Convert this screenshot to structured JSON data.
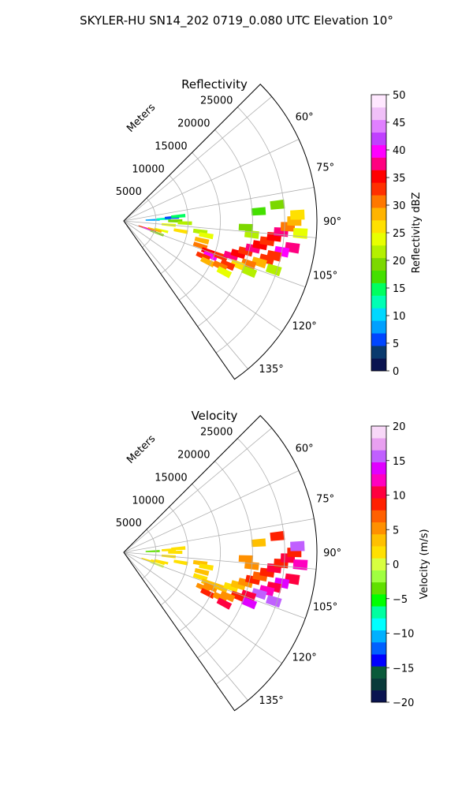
{
  "figure": {
    "title": "SKYLER-HU  SN14_202  0719_0.080 UTC Elevation 10°"
  },
  "chart_data": [
    {
      "type": "heatmap",
      "projection": "polar-sector",
      "title": "Reflectivity",
      "radial_label": "Meters",
      "radial_ticks": [
        "5000",
        "10000",
        "15000",
        "20000",
        "25000"
      ],
      "radial_tick_values": [
        5000,
        10000,
        15000,
        20000,
        25000
      ],
      "rlim": [
        0,
        30000
      ],
      "azimuth_ticks": [
        "60°",
        "75°",
        "90°",
        "105°",
        "120°",
        "135°"
      ],
      "azimuth_tick_values": [
        60,
        75,
        90,
        105,
        120,
        135
      ],
      "azimuth_range": [
        45,
        145
      ],
      "grid": true,
      "colorbar": {
        "label": "Reflectivity dBZ",
        "range": [
          0,
          50
        ],
        "ticks": [
          "0",
          "5",
          "10",
          "15",
          "20",
          "25",
          "30",
          "35",
          "40",
          "45",
          "50"
        ],
        "tick_values": [
          0,
          5,
          10,
          15,
          20,
          25,
          30,
          35,
          40,
          45,
          50
        ],
        "colors": [
          "#0a1450",
          "#0a3a6e",
          "#0046ff",
          "#00a0ff",
          "#00d8ff",
          "#00ffb4",
          "#00ff60",
          "#44e000",
          "#7cd800",
          "#b4f000",
          "#e8ff00",
          "#ffe000",
          "#ffb400",
          "#ff7800",
          "#ff3000",
          "#ff0000",
          "#ff0080",
          "#ff00ff",
          "#c040ff",
          "#e080ff",
          "#f0c0f8",
          "#ffe8ff"
        ]
      },
      "cells": [
        {
          "az": 88,
          "r": 4500,
          "v": 8
        },
        {
          "az": 87,
          "r": 6200,
          "v": 12
        },
        {
          "az": 86,
          "r": 7500,
          "v": 6
        },
        {
          "az": 85,
          "r": 8500,
          "v": 14
        },
        {
          "az": 90,
          "r": 8000,
          "v": 20
        },
        {
          "az": 92,
          "r": 9500,
          "v": 22
        },
        {
          "az": 95,
          "r": 7000,
          "v": 24
        },
        {
          "az": 100,
          "r": 9000,
          "v": 26
        },
        {
          "az": 104,
          "r": 6000,
          "v": 24
        },
        {
          "az": 108,
          "r": 3500,
          "v": 34
        },
        {
          "az": 109,
          "r": 4200,
          "v": 40
        },
        {
          "az": 106,
          "r": 5000,
          "v": 28
        },
        {
          "az": 110,
          "r": 5500,
          "v": 20
        },
        {
          "az": 98,
          "r": 12000,
          "v": 22
        },
        {
          "az": 100,
          "r": 13000,
          "v": 24
        },
        {
          "az": 104,
          "r": 12500,
          "v": 28
        },
        {
          "az": 108,
          "r": 12500,
          "v": 30
        },
        {
          "az": 110,
          "r": 14000,
          "v": 36
        },
        {
          "az": 112,
          "r": 14500,
          "v": 40
        },
        {
          "az": 114,
          "r": 13500,
          "v": 32
        },
        {
          "az": 116,
          "r": 14500,
          "v": 28
        },
        {
          "az": 110,
          "r": 16000,
          "v": 34
        },
        {
          "az": 108,
          "r": 17500,
          "v": 38
        },
        {
          "az": 106,
          "r": 18500,
          "v": 36
        },
        {
          "az": 104,
          "r": 19500,
          "v": 34
        },
        {
          "az": 102,
          "r": 20500,
          "v": 38
        },
        {
          "az": 100,
          "r": 21500,
          "v": 36
        },
        {
          "az": 98,
          "r": 22500,
          "v": 32
        },
        {
          "az": 96,
          "r": 23500,
          "v": 36
        },
        {
          "az": 94,
          "r": 24500,
          "v": 38
        },
        {
          "az": 92,
          "r": 25500,
          "v": 30
        },
        {
          "az": 90,
          "r": 26500,
          "v": 28
        },
        {
          "az": 94,
          "r": 27500,
          "v": 24
        },
        {
          "az": 99,
          "r": 26500,
          "v": 38
        },
        {
          "az": 101,
          "r": 25000,
          "v": 40
        },
        {
          "az": 103,
          "r": 24000,
          "v": 34
        },
        {
          "az": 105,
          "r": 23000,
          "v": 32
        },
        {
          "az": 107,
          "r": 22000,
          "v": 28
        },
        {
          "az": 109,
          "r": 20500,
          "v": 30
        },
        {
          "az": 111,
          "r": 19000,
          "v": 26
        },
        {
          "az": 113,
          "r": 17500,
          "v": 34
        },
        {
          "az": 115,
          "r": 16500,
          "v": 30
        },
        {
          "az": 117,
          "r": 17500,
          "v": 24
        },
        {
          "az": 112,
          "r": 21000,
          "v": 22
        },
        {
          "az": 108,
          "r": 24500,
          "v": 22
        },
        {
          "az": 96,
          "r": 20000,
          "v": 22
        },
        {
          "az": 93,
          "r": 19000,
          "v": 20
        },
        {
          "az": 86,
          "r": 21000,
          "v": 18
        },
        {
          "az": 84,
          "r": 24000,
          "v": 20
        },
        {
          "az": 88,
          "r": 27000,
          "v": 26
        }
      ]
    },
    {
      "type": "heatmap",
      "projection": "polar-sector",
      "title": "Velocity",
      "radial_label": "Meters",
      "radial_ticks": [
        "5000",
        "10000",
        "15000",
        "20000",
        "25000"
      ],
      "radial_tick_values": [
        5000,
        10000,
        15000,
        20000,
        25000
      ],
      "rlim": [
        0,
        30000
      ],
      "azimuth_ticks": [
        "60°",
        "75°",
        "90°",
        "105°",
        "120°",
        "135°"
      ],
      "azimuth_tick_values": [
        60,
        75,
        90,
        105,
        120,
        135
      ],
      "azimuth_range": [
        45,
        145
      ],
      "grid": true,
      "colorbar": {
        "label": "Velocity (m/s)",
        "range": [
          -20,
          20
        ],
        "ticks": [
          "−20",
          "−15",
          "−10",
          "−5",
          "0",
          "5",
          "10",
          "15",
          "20"
        ],
        "tick_values": [
          -20,
          -15,
          -10,
          -5,
          0,
          5,
          10,
          15,
          20
        ],
        "colors": [
          "#0a1450",
          "#0a3a3a",
          "#0a5a3a",
          "#0000ff",
          "#0060ff",
          "#00b0ff",
          "#00ffff",
          "#00ffa0",
          "#00ff00",
          "#60e000",
          "#a0ff40",
          "#d8ff40",
          "#ffe000",
          "#ffc000",
          "#ff9000",
          "#ff6000",
          "#ff2000",
          "#ff0040",
          "#ff00c0",
          "#e000ff",
          "#c060ff",
          "#e8a0f0",
          "#f8d8f8"
        ]
      },
      "cells": [
        {
          "az": 88,
          "r": 4500,
          "v": -3
        },
        {
          "az": 87,
          "r": 7000,
          "v": 2
        },
        {
          "az": 86,
          "r": 8500,
          "v": 1
        },
        {
          "az": 90,
          "r": 8000,
          "v": 2
        },
        {
          "az": 95,
          "r": 7000,
          "v": 2
        },
        {
          "az": 100,
          "r": 9000,
          "v": 1
        },
        {
          "az": 104,
          "r": 6000,
          "v": 2
        },
        {
          "az": 108,
          "r": 4000,
          "v": 1
        },
        {
          "az": 106,
          "r": 5500,
          "v": 1
        },
        {
          "az": 110,
          "r": 5500,
          "v": 0
        },
        {
          "az": 98,
          "r": 12000,
          "v": 3
        },
        {
          "az": 100,
          "r": 13000,
          "v": 2
        },
        {
          "az": 104,
          "r": 12500,
          "v": 3
        },
        {
          "az": 108,
          "r": 12500,
          "v": 2
        },
        {
          "az": 110,
          "r": 14000,
          "v": 4
        },
        {
          "az": 112,
          "r": 14500,
          "v": 6
        },
        {
          "az": 114,
          "r": 13500,
          "v": 5
        },
        {
          "az": 116,
          "r": 14500,
          "v": 8
        },
        {
          "az": 110,
          "r": 16000,
          "v": 3
        },
        {
          "az": 108,
          "r": 17500,
          "v": 2
        },
        {
          "az": 106,
          "r": 18500,
          "v": 4
        },
        {
          "az": 104,
          "r": 19500,
          "v": 6
        },
        {
          "az": 102,
          "r": 20500,
          "v": 8
        },
        {
          "az": 100,
          "r": 21500,
          "v": 7
        },
        {
          "az": 98,
          "r": 22500,
          "v": 9
        },
        {
          "az": 96,
          "r": 23500,
          "v": 10
        },
        {
          "az": 94,
          "r": 24500,
          "v": 9
        },
        {
          "az": 92,
          "r": 25500,
          "v": 11
        },
        {
          "az": 90,
          "r": 26500,
          "v": 9
        },
        {
          "az": 94,
          "r": 27500,
          "v": 12
        },
        {
          "az": 99,
          "r": 26500,
          "v": 10
        },
        {
          "az": 101,
          "r": 25000,
          "v": 14
        },
        {
          "az": 103,
          "r": 24000,
          "v": 11
        },
        {
          "az": 105,
          "r": 23000,
          "v": 12
        },
        {
          "az": 107,
          "r": 22000,
          "v": 16
        },
        {
          "az": 109,
          "r": 20500,
          "v": 10
        },
        {
          "az": 111,
          "r": 19000,
          "v": 8
        },
        {
          "az": 113,
          "r": 17500,
          "v": 5
        },
        {
          "az": 115,
          "r": 16500,
          "v": 6
        },
        {
          "az": 117,
          "r": 17500,
          "v": 10
        },
        {
          "az": 112,
          "r": 21000,
          "v": 14
        },
        {
          "az": 108,
          "r": 24500,
          "v": 15
        },
        {
          "az": 96,
          "r": 20000,
          "v": 6
        },
        {
          "az": 93,
          "r": 19000,
          "v": 5
        },
        {
          "az": 86,
          "r": 21000,
          "v": 4
        },
        {
          "az": 84,
          "r": 24000,
          "v": 8
        },
        {
          "az": 88,
          "r": 27000,
          "v": 16
        }
      ]
    }
  ]
}
